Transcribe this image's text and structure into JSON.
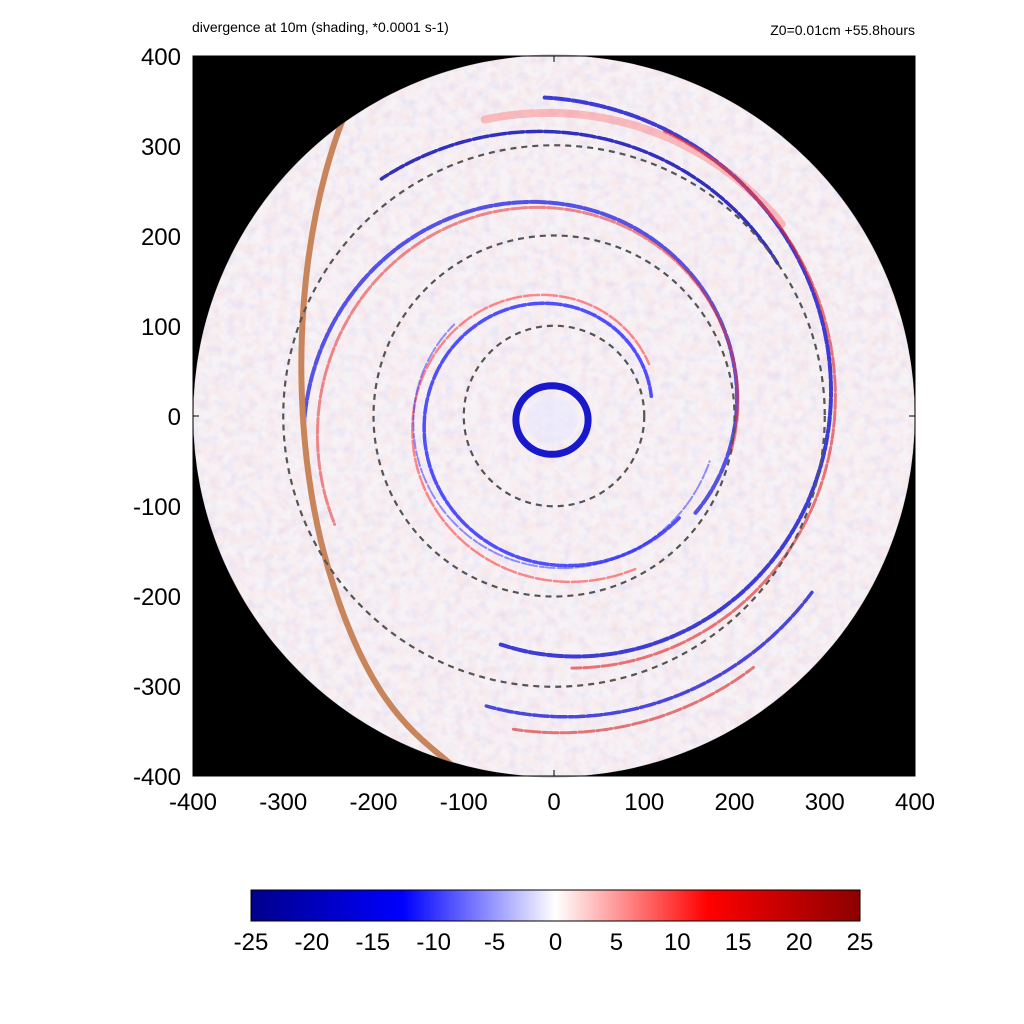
{
  "header": {
    "title": "divergence at 10m (shading, *0.0001 s-1)",
    "info": "Z0=0.01cm  +55.8hours"
  },
  "chart_data": {
    "type": "heatmap",
    "title": "divergence at 10m (shading, *0.0001 s-1)",
    "annotation": "Z0=0.01cm  +55.8hours",
    "units": "*0.0001 s-1",
    "xlim": [
      -400,
      400
    ],
    "ylim": [
      -400,
      400
    ],
    "x_ticks": [
      "-400",
      "-300",
      "-200",
      "-100",
      "0",
      "100",
      "200",
      "300",
      "400"
    ],
    "y_ticks": [
      "400",
      "300",
      "200",
      "100",
      "0",
      "-100",
      "-200",
      "-300",
      "-400"
    ],
    "domain_radius": 400,
    "range_rings": [
      100,
      200,
      300
    ],
    "colorbar": {
      "min": -25,
      "max": 25,
      "ticks": [
        "-25",
        "-20",
        "-15",
        "-10",
        "-5",
        "0",
        "5",
        "10",
        "15",
        "20",
        "25"
      ],
      "colors": [
        "#00008c",
        "#0000ff",
        "#ffffff",
        "#ff0000",
        "#8c0000"
      ]
    },
    "features": {
      "eyewall_radius": 40,
      "coastline_color": "#c8845a",
      "outside_domain_color": "#000000",
      "ring_color": "#555555"
    }
  }
}
